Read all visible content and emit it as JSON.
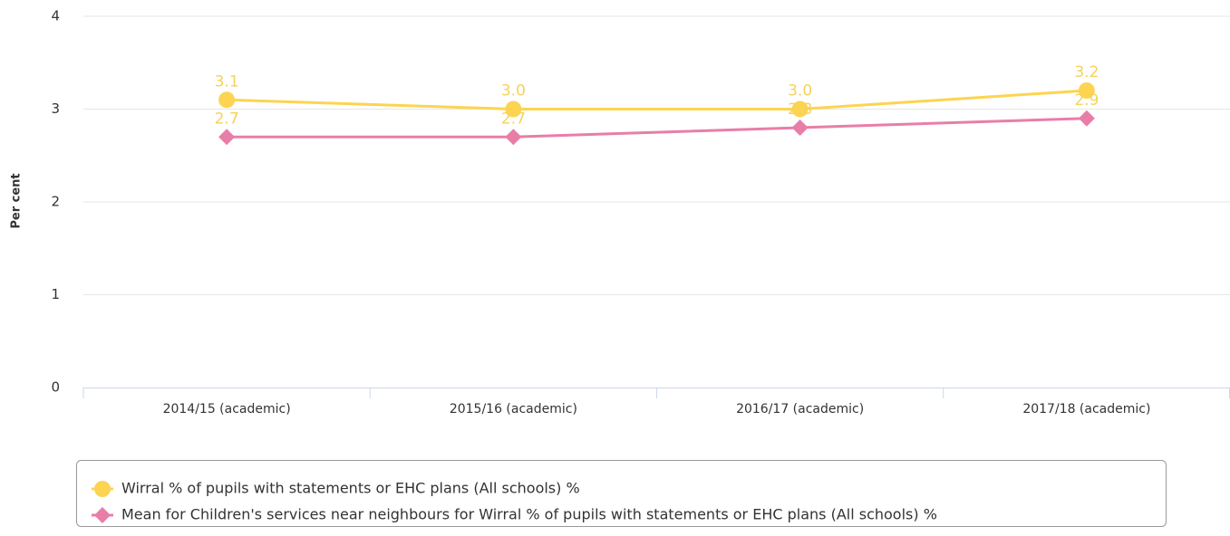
{
  "chart_data": {
    "type": "line",
    "y_label": "Per cent",
    "categories": [
      "2014/15 (academic)",
      "2015/16 (academic)",
      "2016/17 (academic)",
      "2017/18 (academic)"
    ],
    "series": [
      {
        "name": "Wirral % of pupils with statements or EHC plans (All schools) %",
        "color": "#fdd451",
        "marker": "circle",
        "values": [
          3.1,
          3.0,
          3.0,
          3.2
        ],
        "value_labels": [
          "3.1",
          "3.0",
          "3.0",
          "3.2"
        ]
      },
      {
        "name": "Mean for Children's services near neighbours for Wirral % of pupils with statements or EHC plans (All schools) %",
        "color": "#e87ea8",
        "marker": "diamond",
        "values": [
          2.7,
          2.7,
          2.8,
          2.9
        ]
      }
    ],
    "ylim": [
      0,
      4
    ],
    "yticks": [
      0,
      1,
      2,
      3,
      4
    ],
    "grid": true,
    "legend": "bottom"
  }
}
